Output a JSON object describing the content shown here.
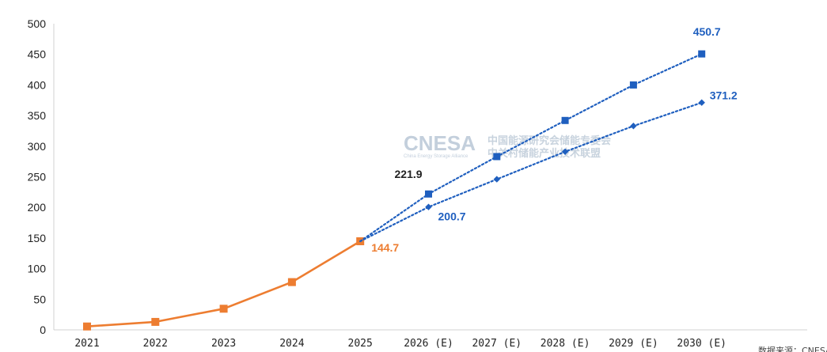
{
  "chart_data": {
    "type": "line",
    "categories": [
      "2021",
      "2022",
      "2023",
      "2024",
      "2025",
      "2026 (E)",
      "2027 (E)",
      "2028 (E)",
      "2029 (E)",
      "2030 (E)"
    ],
    "ylim": [
      0,
      500
    ],
    "yticks": [
      0,
      50,
      100,
      150,
      200,
      250,
      300,
      350,
      400,
      450,
      500
    ],
    "grid": false,
    "legend": "none",
    "series": [
      {
        "role": "actual",
        "color": "#ed7d31",
        "marker": "square",
        "values": [
          5.5,
          13.0,
          34.5,
          78.0,
          144.7,
          null,
          null,
          null,
          null,
          null
        ]
      },
      {
        "role": "forecast-high",
        "color": "#1f5fbf",
        "marker": "square",
        "dashed": true,
        "values": [
          null,
          null,
          null,
          null,
          144.7,
          221.9,
          283.0,
          342.0,
          400.0,
          450.7
        ]
      },
      {
        "role": "forecast-low",
        "color": "#1f5fbf",
        "marker": "diamond",
        "dashed": true,
        "values": [
          null,
          null,
          null,
          null,
          144.7,
          200.7,
          246.0,
          291.0,
          333.0,
          371.2
        ]
      }
    ],
    "data_labels": [
      {
        "text": "144.7",
        "color": "#ed7d31"
      },
      {
        "text": "221.9",
        "color": "#222222"
      },
      {
        "text": "200.7",
        "color": "#1f5fbf"
      },
      {
        "text": "450.7",
        "color": "#1f5fbf"
      },
      {
        "text": "371.2",
        "color": "#1f5fbf"
      }
    ]
  },
  "watermark": {
    "logo": "CNESA",
    "logo_sub": "China Energy Storage Alliance",
    "line1": "中国能源研究会储能专委会",
    "line2": "中关村储能产业技术联盟"
  },
  "source_note": "数据来源：CNESA"
}
